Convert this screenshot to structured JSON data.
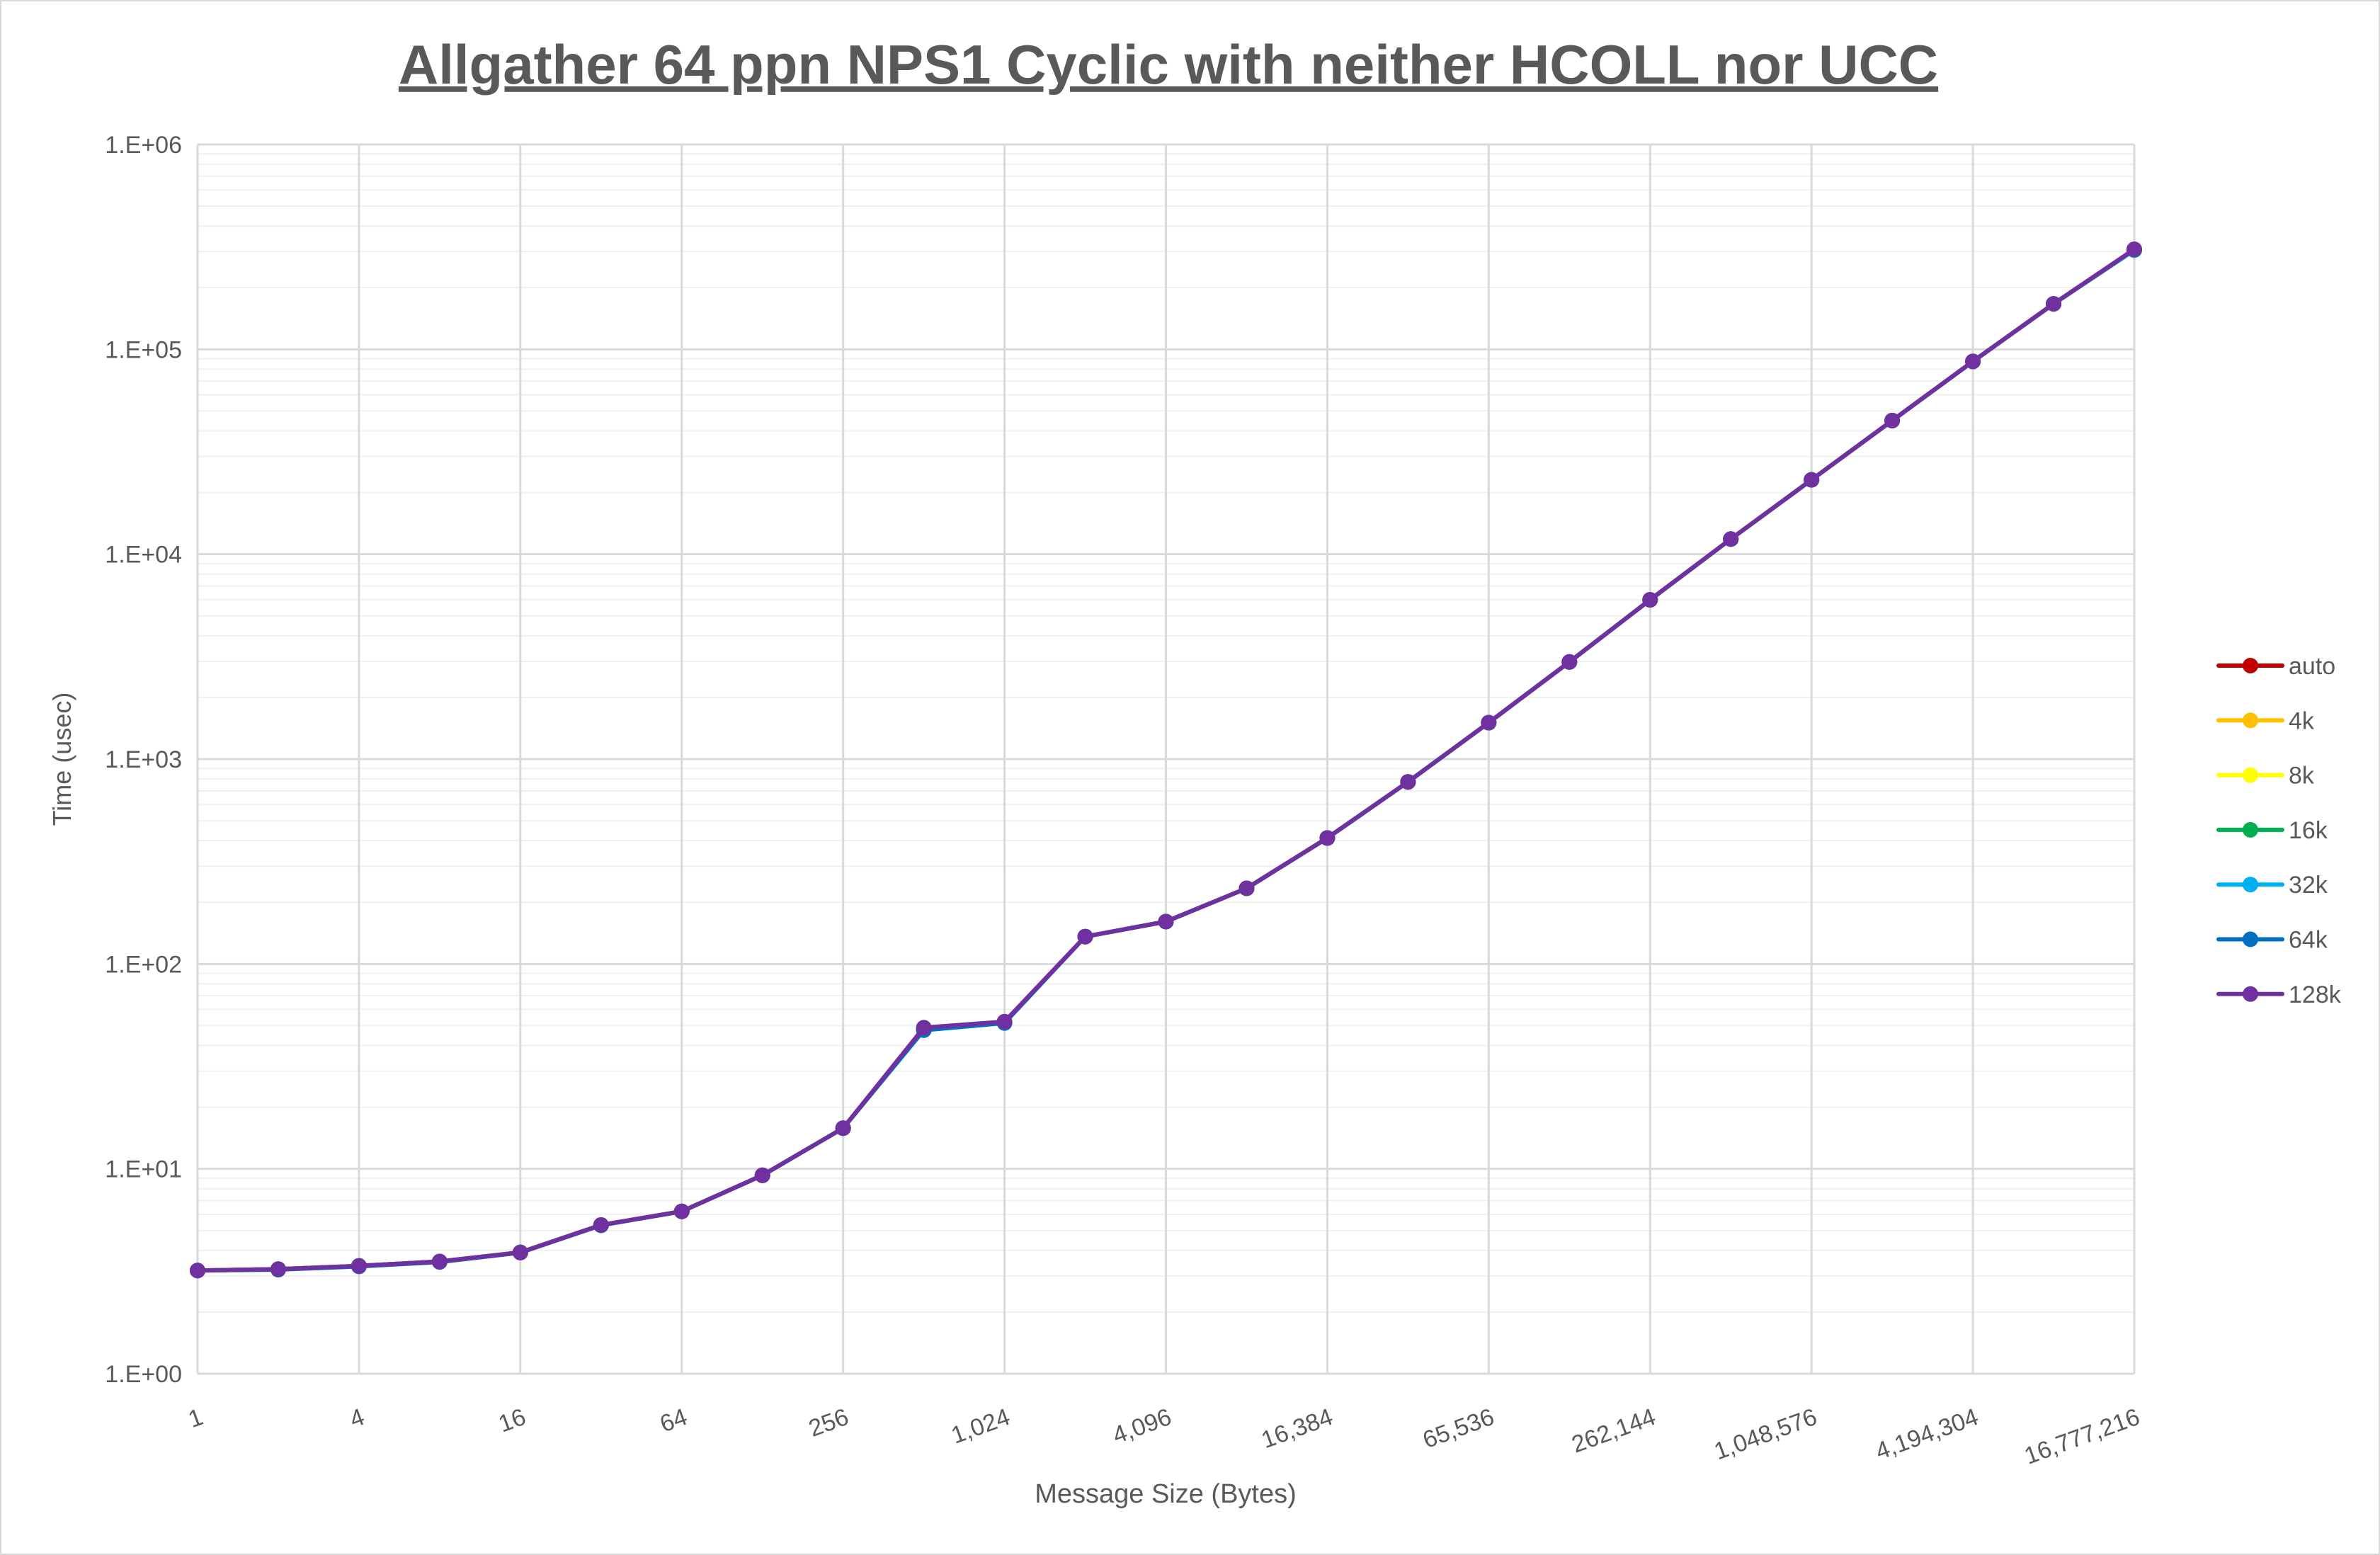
{
  "chart_data": {
    "type": "line",
    "title": "Allgather 64 ppn NPS1 Cyclic with neither HCOLL nor UCC",
    "xlabel": "Message Size (Bytes)",
    "ylabel": "Time (usec)",
    "x_scale": "log2",
    "y_scale": "log10",
    "ylim": [
      1,
      1000000
    ],
    "grid": true,
    "legend_position": "right",
    "x": [
      1,
      2,
      4,
      8,
      16,
      32,
      64,
      128,
      256,
      512,
      1024,
      2048,
      4096,
      8192,
      16384,
      32768,
      65536,
      131072,
      262144,
      524288,
      1048576,
      2097152,
      4194304,
      8388608,
      16777216
    ],
    "x_tick_labels": [
      "1",
      "4",
      "16",
      "64",
      "256",
      "1,024",
      "4,096",
      "16,384",
      "65,536",
      "262,144",
      "1,048,576",
      "4,194,304",
      "16,777,216"
    ],
    "y_tick_labels": [
      "1.E+00",
      "1.E+01",
      "1.E+02",
      "1.E+03",
      "1.E+04",
      "1.E+05",
      "1.E+06"
    ],
    "series": [
      {
        "name": "auto",
        "color": "#C00000",
        "values": [
          3.19,
          3.24,
          3.36,
          3.53,
          3.91,
          5.32,
          6.2,
          9.3,
          15.8,
          48.0,
          52.0,
          136,
          161,
          234,
          412,
          774,
          1506,
          2980,
          5990,
          11860,
          23070,
          44900,
          87300,
          166700,
          305000
        ]
      },
      {
        "name": "4k",
        "color": "#FFC000",
        "values": [
          3.19,
          3.24,
          3.36,
          3.53,
          3.91,
          5.32,
          6.2,
          9.3,
          15.8,
          48.0,
          52.0,
          136,
          161,
          234,
          412,
          774,
          1506,
          2980,
          5990,
          11860,
          23070,
          44900,
          87300,
          166700,
          305000
        ]
      },
      {
        "name": "8k",
        "color": "#FFFF00",
        "values": [
          3.19,
          3.24,
          3.36,
          3.53,
          3.91,
          5.32,
          6.2,
          9.3,
          15.8,
          48.0,
          52.0,
          136,
          161,
          234,
          412,
          774,
          1506,
          2980,
          5990,
          11860,
          23070,
          44900,
          87300,
          166700,
          305000
        ]
      },
      {
        "name": "16k",
        "color": "#00B050",
        "values": [
          3.19,
          3.24,
          3.36,
          3.53,
          3.91,
          5.32,
          6.2,
          9.3,
          15.8,
          48.0,
          52.0,
          136,
          161,
          234,
          412,
          774,
          1506,
          2980,
          5990,
          11860,
          23070,
          44900,
          87300,
          166700,
          305000
        ]
      },
      {
        "name": "32k",
        "color": "#00B0F0",
        "values": [
          3.19,
          3.24,
          3.36,
          3.53,
          3.91,
          5.32,
          6.2,
          9.3,
          15.8,
          48.0,
          52.0,
          136,
          161,
          234,
          412,
          774,
          1506,
          2980,
          5990,
          11860,
          23070,
          44900,
          87300,
          166700,
          305000
        ]
      },
      {
        "name": "64k",
        "color": "#0070C0",
        "values": [
          3.19,
          3.22,
          3.34,
          3.51,
          3.9,
          5.3,
          6.2,
          9.3,
          15.8,
          47.5,
          51.5,
          136,
          161,
          234,
          412,
          774,
          1506,
          2980,
          5990,
          11860,
          23070,
          44900,
          87300,
          166700,
          307000
        ]
      },
      {
        "name": "128k",
        "color": "#7030A0",
        "values": [
          3.19,
          3.24,
          3.36,
          3.53,
          3.91,
          5.32,
          6.2,
          9.3,
          15.8,
          48.9,
          52.3,
          136,
          161,
          234,
          412,
          774,
          1506,
          2980,
          5990,
          11860,
          23070,
          44900,
          87300,
          166700,
          308000
        ]
      }
    ]
  }
}
